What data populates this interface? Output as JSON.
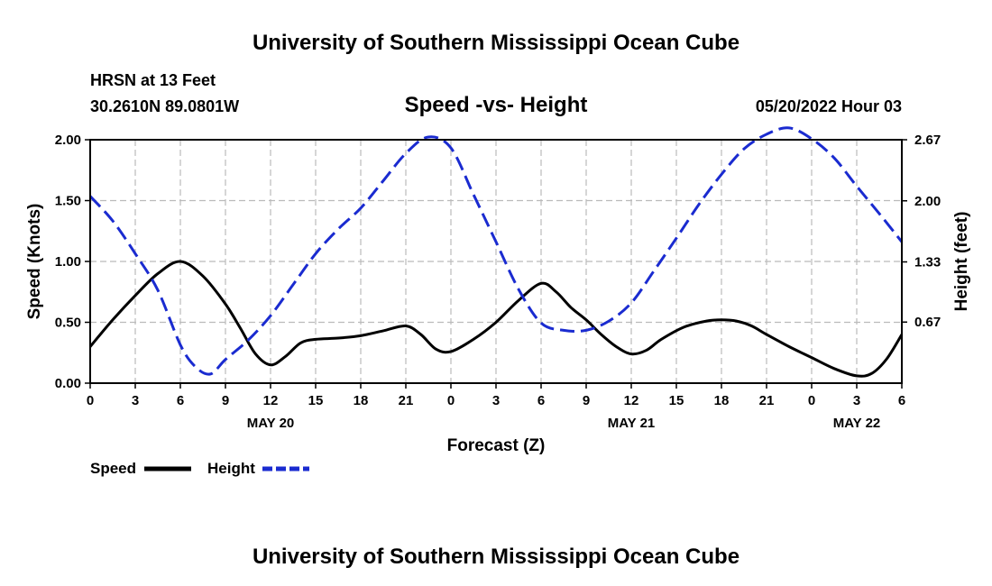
{
  "header": {
    "title": "University of Southern Mississippi Ocean Cube",
    "station": "HRSN at 13 Feet",
    "coords": "30.2610N  89.0801W",
    "chart_title": "Speed -vs- Height",
    "datetime": "05/20/2022 Hour 03"
  },
  "footer": {
    "title": "University of Southern Mississippi Ocean Cube"
  },
  "legend": {
    "speed_label": "Speed",
    "height_label": "Height"
  },
  "colors": {
    "speed": "#000000",
    "height": "#1a2bd0",
    "grid": "#bbbbbb"
  },
  "chart_data": {
    "type": "line",
    "title": "Speed -vs- Height",
    "xlabel": "Forecast (Z)",
    "ylabel": "Speed (Knots)",
    "y2label": "Height (feet)",
    "xlim": [
      0,
      54
    ],
    "ylim": [
      0,
      2
    ],
    "y2lim": [
      0,
      2.67
    ],
    "x_ticks": [
      0,
      3,
      6,
      9,
      12,
      15,
      18,
      21,
      24,
      27,
      30,
      33,
      36,
      39,
      42,
      45,
      48,
      51,
      54
    ],
    "x_tick_labels": [
      "0",
      "3",
      "6",
      "9",
      "12",
      "15",
      "18",
      "21",
      "0",
      "3",
      "6",
      "9",
      "12",
      "15",
      "18",
      "21",
      "0",
      "3",
      "6"
    ],
    "day_labels": [
      {
        "x": 12,
        "label": "MAY 20"
      },
      {
        "x": 36,
        "label": "MAY 21"
      },
      {
        "x": 51,
        "label": "MAY 22"
      }
    ],
    "y_ticks": [
      0,
      0.5,
      1,
      1.5,
      2
    ],
    "y_tick_labels": [
      "0.00",
      "0.50",
      "1.00",
      "1.50",
      "2.00"
    ],
    "y2_ticks": [
      0.67,
      1.33,
      2.0,
      2.67
    ],
    "y2_tick_labels": [
      "0.67",
      "1.33",
      "2.00",
      "2.67"
    ],
    "series": [
      {
        "name": "Speed",
        "axis": "left",
        "style": "solid",
        "x": [
          0,
          1.5,
          3,
          4.5,
          6,
          7.5,
          9,
          10,
          11,
          12,
          13,
          14,
          15,
          16.5,
          18,
          19.5,
          21,
          22,
          23,
          24,
          25.5,
          27,
          28.5,
          30,
          31,
          32,
          33,
          34,
          35,
          36,
          37,
          38,
          39.5,
          41,
          42,
          43,
          44,
          45,
          46.5,
          48,
          49.5,
          51,
          52,
          53,
          54
        ],
        "values": [
          0.3,
          0.52,
          0.72,
          0.9,
          1.0,
          0.88,
          0.65,
          0.45,
          0.24,
          0.15,
          0.22,
          0.33,
          0.36,
          0.37,
          0.39,
          0.43,
          0.47,
          0.4,
          0.28,
          0.26,
          0.36,
          0.5,
          0.68,
          0.82,
          0.75,
          0.62,
          0.52,
          0.4,
          0.3,
          0.24,
          0.27,
          0.36,
          0.46,
          0.51,
          0.52,
          0.51,
          0.47,
          0.4,
          0.3,
          0.21,
          0.12,
          0.06,
          0.08,
          0.2,
          0.4
        ]
      },
      {
        "name": "Height",
        "axis": "right",
        "style": "dashed",
        "x": [
          0,
          1.5,
          3,
          4.5,
          6,
          7,
          8,
          9,
          10.5,
          12,
          13.5,
          15,
          16.5,
          18,
          19.5,
          21,
          22.5,
          24,
          25.5,
          27,
          28.5,
          30,
          31.5,
          33,
          34.5,
          36,
          37.5,
          39,
          40.5,
          42,
          43.5,
          45,
          46.5,
          48,
          49.5,
          51,
          52.5,
          54
        ],
        "values": [
          2.05,
          1.78,
          1.42,
          1.02,
          0.42,
          0.18,
          0.1,
          0.26,
          0.47,
          0.74,
          1.08,
          1.42,
          1.69,
          1.92,
          2.22,
          2.52,
          2.7,
          2.58,
          2.07,
          1.55,
          1.03,
          0.66,
          0.58,
          0.58,
          0.68,
          0.88,
          1.23,
          1.59,
          1.96,
          2.29,
          2.57,
          2.73,
          2.8,
          2.68,
          2.47,
          2.16,
          1.86,
          1.55
        ]
      }
    ],
    "legend_position": "bottom-left",
    "grid": true
  }
}
